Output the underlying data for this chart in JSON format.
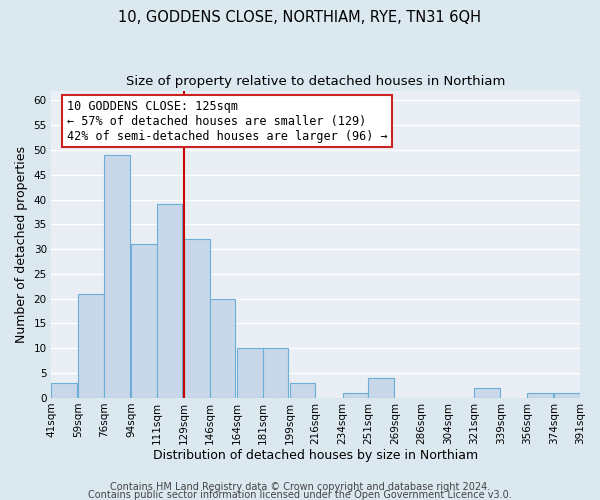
{
  "title": "10, GODDENS CLOSE, NORTHIAM, RYE, TN31 6QH",
  "subtitle": "Size of property relative to detached houses in Northiam",
  "xlabel": "Distribution of detached houses by size in Northiam",
  "ylabel": "Number of detached properties",
  "bar_left_edges": [
    41,
    59,
    76,
    94,
    111,
    129,
    146,
    164,
    181,
    199,
    216,
    234,
    251,
    269,
    286,
    304,
    321,
    339,
    356,
    374
  ],
  "bar_heights": [
    3,
    21,
    49,
    31,
    39,
    32,
    20,
    10,
    10,
    3,
    0,
    1,
    4,
    0,
    0,
    0,
    2,
    0,
    1,
    1
  ],
  "bin_width": 17,
  "tick_labels": [
    "41sqm",
    "59sqm",
    "76sqm",
    "94sqm",
    "111sqm",
    "129sqm",
    "146sqm",
    "164sqm",
    "181sqm",
    "199sqm",
    "216sqm",
    "234sqm",
    "251sqm",
    "269sqm",
    "286sqm",
    "304sqm",
    "321sqm",
    "339sqm",
    "356sqm",
    "374sqm",
    "391sqm"
  ],
  "bar_color": "#c8d8ea",
  "bar_edge_color": "#6baed6",
  "vline_x": 129,
  "vline_color": "#cc0000",
  "ylim": [
    0,
    62
  ],
  "yticks": [
    0,
    5,
    10,
    15,
    20,
    25,
    30,
    35,
    40,
    45,
    50,
    55,
    60
  ],
  "annotation_line1": "10 GODDENS CLOSE: 125sqm",
  "annotation_line2": "← 57% of detached houses are smaller (129)",
  "annotation_line3": "42% of semi-detached houses are larger (96) →",
  "footer1": "Contains HM Land Registry data © Crown copyright and database right 2024.",
  "footer2": "Contains public sector information licensed under the Open Government Licence v3.0.",
  "background_color": "#dce8f0",
  "plot_bg_color": "#e8eef4",
  "grid_color": "#ffffff",
  "title_fontsize": 10.5,
  "subtitle_fontsize": 9.5,
  "axis_label_fontsize": 9,
  "tick_fontsize": 7.5,
  "annotation_fontsize": 8.5,
  "footer_fontsize": 7
}
